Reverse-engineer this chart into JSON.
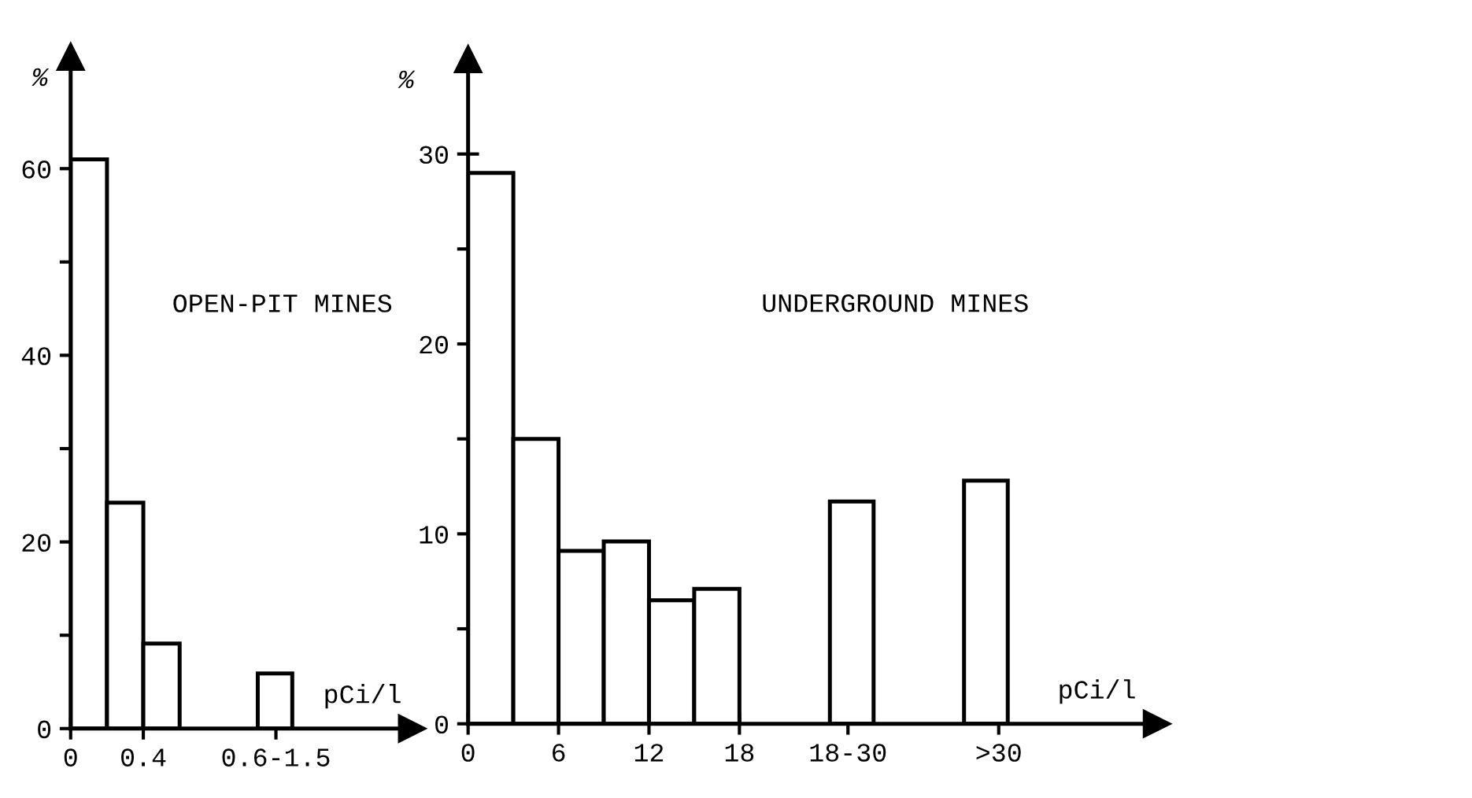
{
  "chart_data": [
    {
      "type": "histogram",
      "annotations": [
        "OPEN-PIT MINES"
      ],
      "ylabel": "%",
      "xlabel": "pCi/l",
      "bins": [
        0,
        0.2,
        0.4,
        0.6,
        1.03,
        1.22
      ],
      "values": [
        61,
        24.2,
        9.1,
        null,
        5.9
      ],
      "color": "#ffffff",
      "xlim": [
        0,
        1.88
      ],
      "xticks": [
        0,
        0.4,
        {
          "value": 1.13,
          "label": "0.6-1.5"
        }
      ],
      "ylim": [
        0,
        72
      ],
      "yticks": [
        0,
        {
          "value": 10,
          "label": null
        },
        20,
        {
          "value": 30,
          "label": null
        },
        40,
        {
          "value": 50,
          "label": null
        },
        60
      ],
      "grid": false,
      "legend": false
    },
    {
      "type": "histogram",
      "annotations": [
        "UNDERGROUND MINES"
      ],
      "ylabel": "%",
      "xlabel": "pCi/l",
      "bins": [
        0,
        3,
        6,
        9,
        12,
        15,
        18,
        24,
        26.9,
        32.9,
        35.8
      ],
      "values": [
        29,
        15,
        9.1,
        9.6,
        6.5,
        7.1,
        null,
        11.7,
        null,
        12.8
      ],
      "color": "#ffffff",
      "xlim": [
        0,
        45.7
      ],
      "xticks": [
        0,
        6,
        12,
        18,
        {
          "value": 25.2,
          "label": "18-30"
        },
        {
          "value": 35.2,
          "label": ">30"
        }
      ],
      "ylim": [
        0,
        35
      ],
      "yticks": [
        0,
        {
          "value": 5,
          "label": null
        },
        10,
        {
          "value": 15,
          "label": null
        },
        20,
        {
          "value": 25,
          "label": null
        },
        30
      ],
      "grid": false,
      "legend": false
    }
  ]
}
